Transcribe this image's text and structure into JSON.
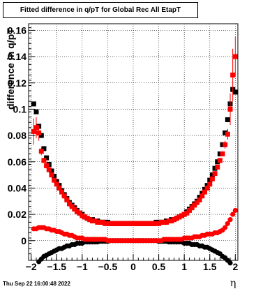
{
  "chart_data": {
    "type": "scatter",
    "title": "Fitted difference in q/pT for Global Rec All EtapT",
    "xlabel": "η",
    "ylabel": "difference in q/pT",
    "xlim": [
      -2.05,
      2.05
    ],
    "ylim": [
      -0.015,
      0.165
    ],
    "x_ticks": [
      -2,
      -1.5,
      -1,
      -0.5,
      0,
      0.5,
      1,
      1.5,
      2
    ],
    "y_ticks": [
      0,
      0.02,
      0.04,
      0.06,
      0.08,
      0.1,
      0.12,
      0.14,
      0.16
    ],
    "x_tick_labels": [
      "−2",
      "−1.5",
      "−1",
      "−0.5",
      "0",
      "0.5",
      "1",
      "1.5",
      "2"
    ],
    "y_tick_labels": [
      "0",
      "0.02",
      "0.04",
      "0.06",
      "0.08",
      "0.1",
      "0.12",
      "0.14",
      "0.16"
    ],
    "grid": true,
    "colors": {
      "red": "#ff0000",
      "black": "#000000"
    },
    "series": [
      {
        "marker": "square",
        "color": "#000000",
        "x": [
          -1.95,
          -1.9,
          -1.85,
          -1.8,
          -1.75,
          -1.7,
          -1.65,
          -1.6,
          -1.55,
          -1.5,
          -1.45,
          -1.4,
          -1.35,
          -1.3,
          -1.25,
          -1.2,
          -1.15,
          -1.1,
          -1.05,
          -1.0,
          -0.95,
          -0.9,
          -0.85,
          -0.8,
          -0.75,
          -0.7,
          -0.65,
          -0.6,
          -0.55,
          -0.5,
          -0.45,
          -0.4,
          -0.35,
          -0.3,
          -0.25,
          -0.2,
          -0.15,
          -0.1,
          -0.05,
          0.0,
          0.05,
          0.1,
          0.15,
          0.2,
          0.25,
          0.3,
          0.35,
          0.4,
          0.45,
          0.5,
          0.55,
          0.6,
          0.65,
          0.7,
          0.75,
          0.8,
          0.85,
          0.9,
          0.95,
          1.0,
          1.05,
          1.1,
          1.15,
          1.2,
          1.25,
          1.3,
          1.35,
          1.4,
          1.45,
          1.5,
          1.55,
          1.6,
          1.65,
          1.7,
          1.75,
          1.8,
          1.85,
          1.9,
          1.95,
          2.0
        ],
        "y": [
          0.104,
          0.098,
          0.087,
          0.08,
          0.07,
          0.063,
          0.058,
          0.053,
          0.049,
          0.045,
          0.042,
          0.038,
          0.035,
          0.032,
          0.029,
          0.027,
          0.025,
          0.023,
          0.021,
          0.02,
          0.018,
          0.017,
          0.016,
          0.016,
          0.015,
          0.015,
          0.014,
          0.014,
          0.014,
          0.014,
          0.013,
          0.013,
          0.013,
          0.013,
          0.013,
          0.013,
          0.013,
          0.013,
          0.013,
          0.013,
          0.013,
          0.013,
          0.013,
          0.013,
          0.013,
          0.013,
          0.013,
          0.013,
          0.014,
          0.014,
          0.014,
          0.014,
          0.015,
          0.015,
          0.016,
          0.016,
          0.017,
          0.018,
          0.019,
          0.02,
          0.022,
          0.024,
          0.026,
          0.028,
          0.03,
          0.033,
          0.036,
          0.039,
          0.042,
          0.046,
          0.05,
          0.055,
          0.06,
          0.066,
          0.073,
          0.082,
          0.092,
          0.104,
          0.115,
          0.113
        ]
      },
      {
        "marker": "square",
        "color": "#ff0000",
        "x": [
          -1.95,
          -1.9,
          -1.85,
          -1.8,
          -1.75,
          -1.7,
          -1.65,
          -1.6,
          -1.55,
          -1.5,
          -1.45,
          -1.4,
          -1.35,
          -1.3,
          -1.25,
          -1.2,
          -1.15,
          -1.1,
          -1.05,
          -1.0,
          -0.95,
          -0.9,
          -0.85,
          -0.8,
          -0.75,
          -0.7,
          -0.65,
          -0.6,
          -0.55,
          -0.5,
          -0.45,
          -0.4,
          -0.35,
          -0.3,
          -0.25,
          -0.2,
          -0.15,
          -0.1,
          -0.05,
          0.0,
          0.05,
          0.1,
          0.15,
          0.2,
          0.25,
          0.3,
          0.35,
          0.4,
          0.45,
          0.5,
          0.55,
          0.6,
          0.65,
          0.7,
          0.75,
          0.8,
          0.85,
          0.9,
          0.95,
          1.0,
          1.05,
          1.1,
          1.15,
          1.2,
          1.25,
          1.3,
          1.35,
          1.4,
          1.45,
          1.5,
          1.55,
          1.6,
          1.65,
          1.7,
          1.75,
          1.8,
          1.85,
          1.9,
          1.95,
          2.0
        ],
        "y": [
          0.083,
          0.086,
          0.082,
          0.068,
          0.061,
          0.057,
          0.054,
          0.05,
          0.046,
          0.043,
          0.04,
          0.037,
          0.034,
          0.031,
          0.028,
          0.026,
          0.024,
          0.022,
          0.021,
          0.019,
          0.018,
          0.017,
          0.016,
          0.015,
          0.015,
          0.014,
          0.014,
          0.014,
          0.013,
          0.013,
          0.013,
          0.013,
          0.013,
          0.013,
          0.013,
          0.013,
          0.013,
          0.013,
          0.013,
          0.013,
          0.013,
          0.013,
          0.013,
          0.013,
          0.013,
          0.013,
          0.013,
          0.013,
          0.013,
          0.013,
          0.014,
          0.014,
          0.014,
          0.015,
          0.015,
          0.016,
          0.017,
          0.018,
          0.019,
          0.02,
          0.021,
          0.023,
          0.025,
          0.027,
          0.029,
          0.031,
          0.034,
          0.037,
          0.04,
          0.043,
          0.047,
          0.051,
          0.056,
          0.061,
          0.066,
          0.073,
          0.081,
          0.1,
          0.126,
          0.14
        ],
        "err": [
          0.01,
          0.008,
          0.006,
          0.003,
          0.002,
          0.002,
          0.001,
          0.001,
          0.001,
          0.001,
          0.001,
          0.001,
          0.001,
          0.001,
          0.001,
          0.001,
          0.001,
          0.001,
          0.001,
          0.001,
          0.001,
          0.001,
          0.001,
          0.001,
          0.001,
          0.001,
          0.001,
          0.001,
          0.001,
          0.001,
          0.001,
          0.001,
          0.001,
          0.001,
          0.001,
          0.001,
          0.001,
          0.001,
          0.001,
          0.001,
          0.001,
          0.001,
          0.001,
          0.001,
          0.001,
          0.001,
          0.001,
          0.001,
          0.001,
          0.001,
          0.001,
          0.001,
          0.001,
          0.001,
          0.001,
          0.001,
          0.001,
          0.001,
          0.001,
          0.001,
          0.001,
          0.001,
          0.001,
          0.001,
          0.001,
          0.001,
          0.001,
          0.001,
          0.001,
          0.001,
          0.001,
          0.001,
          0.001,
          0.002,
          0.002,
          0.003,
          0.004,
          0.012,
          0.02,
          0.015
        ]
      },
      {
        "marker": "circle",
        "color": "#ff0000",
        "x": [
          -1.95,
          -1.9,
          -1.85,
          -1.8,
          -1.75,
          -1.7,
          -1.65,
          -1.6,
          -1.55,
          -1.5,
          -1.45,
          -1.4,
          -1.35,
          -1.3,
          -1.25,
          -1.2,
          -1.15,
          -1.1,
          -1.05,
          -1.0,
          -0.95,
          -0.9,
          -0.85,
          -0.8,
          -0.75,
          -0.7,
          -0.65,
          -0.6,
          -0.55,
          -0.5,
          -0.45,
          -0.4,
          -0.35,
          -0.3,
          -0.25,
          -0.2,
          -0.15,
          -0.1,
          -0.05,
          0.0,
          0.05,
          0.1,
          0.15,
          0.2,
          0.25,
          0.3,
          0.35,
          0.4,
          0.45,
          0.5,
          0.55,
          0.6,
          0.65,
          0.7,
          0.75,
          0.8,
          0.85,
          0.9,
          0.95,
          1.0,
          1.05,
          1.1,
          1.15,
          1.2,
          1.25,
          1.3,
          1.35,
          1.4,
          1.45,
          1.5,
          1.55,
          1.6,
          1.65,
          1.7,
          1.75,
          1.8,
          1.85,
          1.9,
          1.95,
          2.0
        ],
        "y": [
          0.009,
          0.009,
          0.01,
          0.01,
          0.01,
          0.009,
          0.009,
          0.008,
          0.008,
          0.007,
          0.007,
          0.006,
          0.005,
          0.005,
          0.004,
          0.004,
          0.003,
          0.002,
          0.002,
          0.002,
          0.001,
          0.001,
          0.001,
          0.001,
          0.001,
          0.001,
          0.001,
          0.001,
          0.001,
          0.0,
          0.0,
          0.0,
          0.0,
          0.0,
          0.0,
          0.0,
          0.0,
          0.0,
          0.0,
          0.0,
          0.0,
          0.0,
          0.0,
          0.0,
          0.0,
          0.0,
          0.0,
          0.0,
          0.0,
          0.0,
          0.0,
          0.001,
          0.001,
          0.001,
          0.001,
          0.001,
          0.001,
          0.001,
          0.001,
          0.002,
          0.002,
          0.002,
          0.002,
          0.003,
          0.003,
          0.003,
          0.004,
          0.004,
          0.005,
          0.005,
          0.005,
          0.006,
          0.006,
          0.007,
          0.008,
          0.01,
          0.013,
          0.016,
          0.02,
          0.023
        ]
      },
      {
        "marker": "circle",
        "color": "#000000",
        "x": [
          -1.95,
          -1.9,
          -1.85,
          -1.8,
          -1.75,
          -1.7,
          -1.65,
          -1.6,
          -1.55,
          -1.5,
          -1.45,
          -1.4,
          -1.35,
          -1.3,
          -1.25,
          -1.2,
          -1.15,
          -1.1,
          -1.05,
          -1.0,
          -0.95,
          -0.9,
          -0.85,
          -0.8,
          -0.75,
          -0.7,
          -0.65,
          -0.6,
          -0.55,
          -0.5,
          -0.45,
          -0.4,
          -0.35,
          -0.3,
          -0.25,
          -0.2,
          -0.15,
          -0.1,
          -0.05,
          0.0,
          0.05,
          0.1,
          0.15,
          0.2,
          0.25,
          0.3,
          0.35,
          0.4,
          0.45,
          0.5,
          0.55,
          0.6,
          0.65,
          0.7,
          0.75,
          0.8,
          0.85,
          0.9,
          0.95,
          1.0,
          1.05,
          1.1,
          1.15,
          1.2,
          1.25,
          1.3,
          1.35,
          1.4,
          1.45,
          1.5,
          1.55,
          1.6,
          1.65,
          1.7,
          1.75,
          1.8,
          1.85,
          1.9,
          1.95,
          2.0
        ],
        "y": [
          -0.02,
          -0.018,
          -0.016,
          -0.014,
          -0.012,
          -0.011,
          -0.01,
          -0.009,
          -0.008,
          -0.007,
          -0.006,
          -0.006,
          -0.005,
          -0.004,
          -0.004,
          -0.003,
          -0.003,
          -0.002,
          -0.002,
          -0.002,
          -0.001,
          -0.001,
          -0.001,
          -0.001,
          -0.001,
          -0.001,
          -0.0005,
          -0.0005,
          -0.0005,
          -0.0005,
          0.0,
          0.0,
          0.0,
          0.0,
          0.0,
          0.0,
          0.0,
          0.0,
          0.0,
          0.0,
          0.0,
          0.0,
          0.0,
          0.0,
          0.0,
          0.0,
          0.0,
          0.0,
          0.0,
          -0.0005,
          -0.0005,
          -0.0005,
          -0.0005,
          -0.001,
          -0.001,
          -0.001,
          -0.001,
          -0.001,
          -0.001,
          -0.002,
          -0.002,
          -0.002,
          -0.003,
          -0.003,
          -0.003,
          -0.004,
          -0.004,
          -0.005,
          -0.005,
          -0.006,
          -0.007,
          -0.008,
          -0.009,
          -0.01,
          -0.012,
          -0.013,
          -0.015,
          -0.017,
          -0.02,
          -0.022
        ]
      }
    ],
    "footer": "Thu Sep 22 16:00:48 2022"
  }
}
